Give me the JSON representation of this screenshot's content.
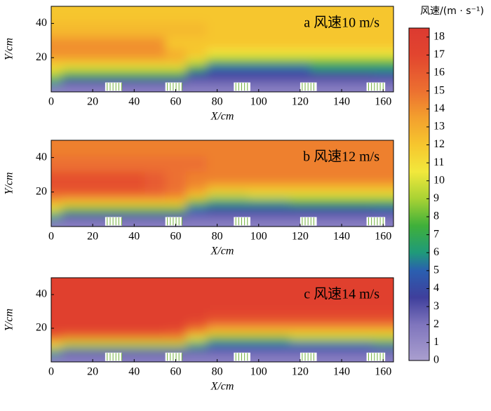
{
  "chart_data": [
    {
      "type": "heatmap",
      "annotation": "a  风速10 m/s",
      "xlabel": "X/cm",
      "ylabel": "Y/cm",
      "xlim": [
        0,
        165
      ],
      "ylim": [
        0,
        50
      ],
      "xticks": [
        0,
        20,
        40,
        60,
        80,
        100,
        120,
        140,
        160
      ],
      "yticks": [
        20,
        40
      ],
      "x": [
        0,
        10,
        20,
        30,
        40,
        50,
        60,
        70,
        80,
        90,
        100,
        110,
        120,
        130,
        140,
        150,
        160
      ],
      "y": [
        2,
        6,
        10,
        14,
        18,
        22,
        28,
        36,
        46
      ],
      "values": [
        [
          1.5,
          1.5,
          1.5,
          1.5,
          1.5,
          1.5,
          1.5,
          1.5,
          1.5,
          1.5,
          1.5,
          1.5,
          1.5,
          1.5,
          1.5,
          1.5,
          1.5
        ],
        [
          6,
          3,
          3,
          3,
          3,
          3,
          3,
          2.5,
          2.5,
          2.5,
          2.5,
          2.5,
          2.5,
          2.5,
          2.5,
          2.5,
          2.5
        ],
        [
          9,
          7,
          7,
          7,
          7,
          7,
          7,
          4,
          3.5,
          3.5,
          3.5,
          3.5,
          3.5,
          3.5,
          3.5,
          3.5,
          4
        ],
        [
          11,
          10,
          10,
          10,
          10,
          10,
          10,
          7,
          5,
          5,
          5,
          5,
          5,
          6,
          6,
          6,
          6
        ],
        [
          12.5,
          12.5,
          12.5,
          12.5,
          12.5,
          12.5,
          12.5,
          10,
          8,
          8,
          8,
          8,
          8,
          8,
          8,
          8,
          8
        ],
        [
          14,
          14,
          14,
          14,
          14,
          14,
          13,
          12,
          10.5,
          10.5,
          10.5,
          10.5,
          10.5,
          10.5,
          10.5,
          10.5,
          10.5
        ],
        [
          14,
          14,
          14,
          14,
          14,
          14,
          12,
          12,
          12,
          12,
          12,
          12,
          12,
          12,
          12,
          12,
          12
        ],
        [
          12.5,
          12.5,
          12.5,
          12.5,
          12.5,
          12.5,
          12.5,
          12.5,
          12,
          12,
          12,
          12,
          12,
          12,
          12,
          12,
          12
        ],
        [
          12,
          12,
          12,
          12,
          12,
          12,
          12,
          12,
          12,
          12,
          12,
          12,
          12,
          12,
          12,
          12,
          12
        ]
      ]
    },
    {
      "type": "heatmap",
      "annotation": "b  风速12 m/s",
      "xlabel": "X/cm",
      "ylabel": "Y/cm",
      "xlim": [
        0,
        165
      ],
      "ylim": [
        0,
        50
      ],
      "xticks": [
        0,
        20,
        40,
        60,
        80,
        100,
        120,
        140,
        160
      ],
      "yticks": [
        20,
        40
      ],
      "x": [
        0,
        10,
        20,
        30,
        40,
        50,
        60,
        70,
        80,
        90,
        100,
        110,
        120,
        130,
        140,
        150,
        160
      ],
      "y": [
        2,
        6,
        10,
        14,
        18,
        22,
        28,
        36,
        46
      ],
      "values": [
        [
          1.5,
          1.5,
          1.5,
          1.5,
          1.5,
          1.5,
          1.5,
          1.5,
          1.5,
          1.5,
          1.5,
          1.5,
          1.5,
          1.5,
          1.5,
          1.5,
          1.5
        ],
        [
          6,
          3,
          3,
          3,
          3,
          3,
          3,
          2.5,
          2.5,
          2.5,
          2.5,
          2.5,
          2.5,
          2.5,
          2.5,
          2.5,
          2.5
        ],
        [
          10,
          8,
          8,
          8,
          8,
          8,
          8,
          5,
          4,
          4,
          4,
          4,
          4,
          4,
          4,
          4,
          4.5
        ],
        [
          13,
          12,
          12,
          12,
          12,
          12,
          12,
          8,
          6,
          6,
          6,
          6,
          7,
          7,
          7,
          7,
          7
        ],
        [
          15,
          15,
          15,
          15,
          15,
          15,
          14.5,
          12,
          9.5,
          9.5,
          10,
          10,
          10,
          10,
          10,
          10,
          10
        ],
        [
          16.5,
          16.5,
          16.5,
          16.5,
          16.5,
          16,
          15,
          14,
          12.5,
          12.5,
          12.5,
          12.5,
          12.5,
          12.5,
          12.5,
          12.5,
          12.5
        ],
        [
          16.5,
          16.5,
          16.5,
          16.5,
          16.5,
          16,
          15,
          14.5,
          14.5,
          14.5,
          14.5,
          14.5,
          14.5,
          14.5,
          14.5,
          14.5,
          14.5
        ],
        [
          15,
          15,
          15,
          15,
          15,
          15,
          15,
          15,
          14.5,
          14.5,
          14.5,
          14.5,
          14.5,
          14.5,
          14.5,
          14.5,
          14.5
        ],
        [
          14.5,
          14.5,
          14.5,
          14.5,
          14.5,
          14.5,
          14.5,
          14.5,
          14.5,
          14.5,
          14.5,
          14.5,
          14.5,
          14.5,
          14.5,
          14.5,
          14.5
        ]
      ]
    },
    {
      "type": "heatmap",
      "annotation": "c  风速14 m/s",
      "xlabel": "X/cm",
      "ylabel": "Y/cm",
      "xlim": [
        0,
        165
      ],
      "ylim": [
        0,
        50
      ],
      "xticks": [
        0,
        20,
        40,
        60,
        80,
        100,
        120,
        140,
        160
      ],
      "yticks": [
        20,
        40
      ],
      "x": [
        0,
        10,
        20,
        30,
        40,
        50,
        60,
        70,
        80,
        90,
        100,
        110,
        120,
        130,
        140,
        150,
        160
      ],
      "y": [
        2,
        6,
        10,
        14,
        18,
        22,
        28,
        36,
        46
      ],
      "values": [
        [
          1.5,
          1.5,
          1.5,
          1.5,
          1.5,
          1.5,
          1.5,
          1.5,
          1.5,
          1.5,
          1.5,
          1.5,
          1.5,
          1.5,
          1.5,
          1.5,
          1.5
        ],
        [
          6,
          3,
          3,
          3,
          3,
          3,
          3,
          2.5,
          2.5,
          2.5,
          2.5,
          2.5,
          2.5,
          2.5,
          2.5,
          2.5,
          2.5
        ],
        [
          11,
          9,
          9,
          9,
          9,
          9,
          9,
          6,
          5,
          5,
          5,
          5,
          5,
          5,
          5,
          5,
          5.5
        ],
        [
          15,
          14,
          14,
          14,
          14,
          14,
          14,
          10,
          8,
          8,
          8,
          8,
          9,
          9,
          9,
          9,
          9
        ],
        [
          17,
          17,
          17,
          17,
          17,
          17,
          16.5,
          14,
          12,
          12,
          12,
          12,
          12,
          12,
          12,
          12,
          12
        ],
        [
          17.5,
          17.5,
          17.5,
          17.5,
          17.5,
          17.5,
          17.5,
          16.5,
          15,
          15,
          15,
          15,
          15,
          15,
          15,
          15,
          15
        ],
        [
          17.5,
          17.5,
          17.5,
          17.5,
          17.5,
          17.5,
          17.5,
          17.5,
          17,
          17,
          17,
          17,
          17,
          17,
          17,
          17,
          17
        ],
        [
          17.5,
          17.5,
          17.5,
          17.5,
          17.5,
          17.5,
          17.5,
          17.5,
          17.5,
          17.5,
          17.5,
          17.5,
          17.5,
          17.5,
          17.5,
          17.5,
          17.5
        ],
        [
          17.5,
          17.5,
          17.5,
          17.5,
          17.5,
          17.5,
          17.5,
          17.5,
          17.5,
          17.5,
          17.5,
          17.5,
          17.5,
          17.5,
          17.5,
          17.5,
          17.5
        ]
      ]
    },
    {
      "type": "colorbar",
      "title": "风速/(m · s⁻¹)",
      "ylim": [
        0,
        18.5
      ],
      "yticks": [
        0,
        1,
        2,
        3,
        4,
        5,
        6,
        7,
        8,
        9,
        10,
        11,
        12,
        13,
        14,
        15,
        16,
        17,
        18
      ],
      "stops": [
        [
          0,
          "#aa9fcf"
        ],
        [
          2,
          "#7f75bd"
        ],
        [
          3.5,
          "#3f3f9c"
        ],
        [
          5,
          "#2a5fb0"
        ],
        [
          6,
          "#1f9a7a"
        ],
        [
          7.5,
          "#3fb03a"
        ],
        [
          9,
          "#a8d234"
        ],
        [
          10.5,
          "#f2e83c"
        ],
        [
          12,
          "#f6c62e"
        ],
        [
          13.5,
          "#f3a02e"
        ],
        [
          15,
          "#ec7030"
        ],
        [
          17,
          "#e2452f"
        ],
        [
          18.5,
          "#dc3a30"
        ]
      ]
    }
  ]
}
